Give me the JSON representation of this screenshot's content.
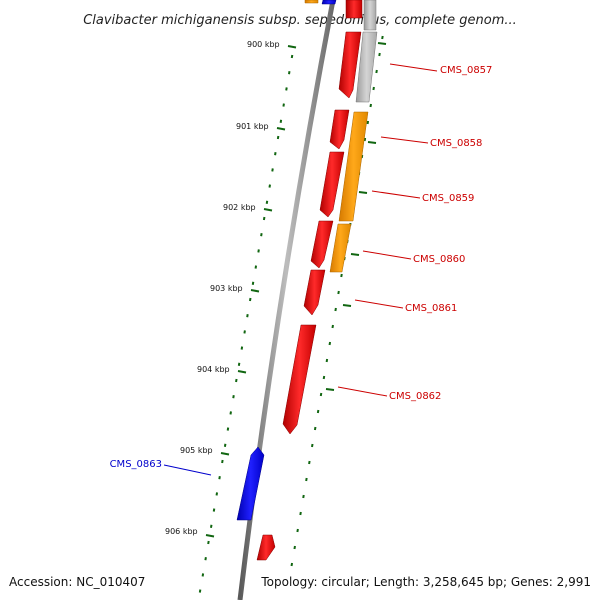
{
  "title": "Clavibacter michiganensis subsp. sepedonicus, complete genom...",
  "footer": {
    "accession": "Accession: NC_010407",
    "summary": "Topology: circular; Length: 3,258,645 bp; Genes: 2,991"
  },
  "colors": {
    "red_gene": "#ee0000",
    "orange_gene": "#ff9900",
    "blue_gene": "#0000ee",
    "gray_gene": "#bbbbbb",
    "tick": "#116611",
    "backbone": "#888888",
    "red_label": "#cc0000",
    "blue_label": "#0000cc"
  },
  "ticks": [
    {
      "label": "900 kbp"
    },
    {
      "label": "901 kbp"
    },
    {
      "label": "902 kbp"
    },
    {
      "label": "903 kbp"
    },
    {
      "label": "904 kbp"
    },
    {
      "label": "905 kbp"
    },
    {
      "label": "906 kbp"
    }
  ],
  "gene_labels": [
    {
      "text": "CMS_0857",
      "strand": "reverse"
    },
    {
      "text": "CMS_0858",
      "strand": "reverse"
    },
    {
      "text": "CMS_0859",
      "strand": "reverse"
    },
    {
      "text": "CMS_0860",
      "strand": "reverse"
    },
    {
      "text": "CMS_0861",
      "strand": "reverse"
    },
    {
      "text": "CMS_0862",
      "strand": "reverse"
    },
    {
      "text": "CMS_0863",
      "strand": "forward"
    }
  ]
}
